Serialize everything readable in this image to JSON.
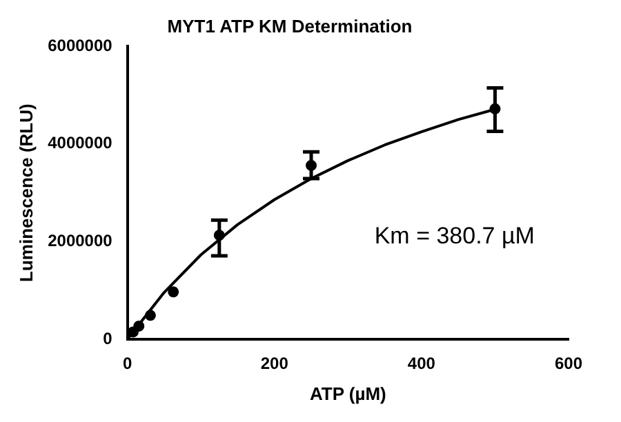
{
  "chart_data": {
    "type": "scatter",
    "title": "MYT1 ATP KM Determination",
    "xlabel": "ATP (µM)",
    "ylabel": "Luminescence (RLU)",
    "xlim": [
      0,
      600
    ],
    "xticks": [
      0,
      200,
      400,
      600
    ],
    "ylim": [
      0,
      6000000
    ],
    "yticks": [
      0,
      2000000,
      4000000,
      6000000
    ],
    "grid": false,
    "legend": false,
    "marker": "circle",
    "annotations": [
      "Km = 380.7 µM"
    ],
    "series": [
      {
        "color": "#000000",
        "x": [
          7.8,
          15.6,
          31.25,
          62.5,
          125,
          250,
          500
        ],
        "values": [
          150000,
          270000,
          490000,
          970000,
          2130000,
          3560000,
          4720000
        ],
        "errors": [
          null,
          null,
          null,
          null,
          [
            1710000,
            2440000
          ],
          [
            3290000,
            3840000
          ],
          [
            4260000,
            5150000
          ]
        ]
      },
      {
        "type": "line",
        "color": "#000000",
        "marker": "none",
        "x": [
          0,
          50,
          100,
          150,
          200,
          250,
          300,
          350,
          400,
          450,
          500
        ],
        "values": [
          0,
          960000,
          1730000,
          2350000,
          2860000,
          3290000,
          3660000,
          3980000,
          4250000,
          4500000,
          4710000
        ]
      }
    ]
  }
}
